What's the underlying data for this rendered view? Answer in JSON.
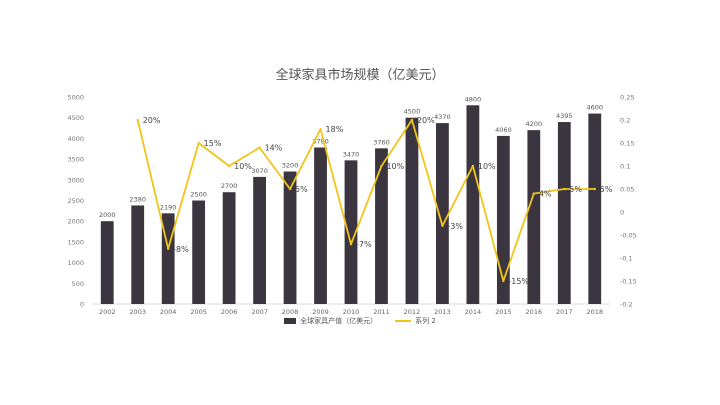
{
  "chart_data": {
    "type": "bar",
    "title": "全球家具市场规模（亿美元）",
    "categories": [
      "2002",
      "2003",
      "2004",
      "2005",
      "2006",
      "2007",
      "2008",
      "2009",
      "2010",
      "2011",
      "2012",
      "2013",
      "2014",
      "2015",
      "2016",
      "2017",
      "2018"
    ],
    "series": [
      {
        "name": "全球家具产值（亿美元）",
        "type": "bar",
        "axis": "left",
        "color": "#3b3540",
        "values": [
          2000,
          2380,
          2190,
          2500,
          2700,
          3070,
          3200,
          3780,
          3470,
          3760,
          4500,
          4370,
          4800,
          4060,
          4200,
          4395,
          4600
        ],
        "labels": [
          "2000",
          "2380",
          "2190",
          "2500",
          "2700",
          "3070",
          "3200",
          "3780",
          "3470",
          "3760",
          "4500",
          "4370",
          "4800",
          "4060",
          "4200",
          "4395",
          "4600"
        ]
      },
      {
        "name": "系列 2",
        "type": "line",
        "axis": "right",
        "color": "#f0c419",
        "values": [
          null,
          0.2,
          -0.08,
          0.15,
          0.1,
          0.14,
          0.05,
          0.18,
          -0.07,
          0.1,
          0.2,
          -0.03,
          0.1,
          -0.15,
          0.04,
          0.05,
          0.05
        ],
        "labels": [
          "",
          "20%",
          "-8%",
          "15%",
          "10%",
          "14%",
          "5%",
          "18%",
          "-7%",
          "10%",
          "20%",
          "-3%",
          "10%",
          "-15%",
          "4%",
          "5%",
          "5%"
        ]
      }
    ],
    "y_left": {
      "min": 0,
      "max": 5000,
      "ticks": [
        "0",
        "500",
        "1000",
        "1500",
        "2000",
        "2500",
        "3000",
        "3500",
        "4000",
        "4500",
        "5000"
      ]
    },
    "y_right": {
      "min": -0.2,
      "max": 0.25,
      "ticks": [
        "-0.2",
        "-0.15",
        "-0.1",
        "-0.05",
        "0",
        "0.05",
        "0.1",
        "0.15",
        "0.2",
        "0.25"
      ]
    },
    "grid": false,
    "legend_position": "bottom"
  }
}
